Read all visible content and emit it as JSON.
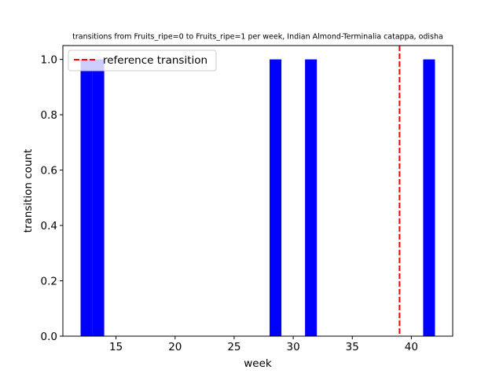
{
  "chart_data": {
    "type": "bar",
    "title": "transitions from Fruits_ripe=0 to Fruits_ripe=1 per week, Indian Almond-Terminalia catappa, odisha",
    "xlabel": "week",
    "ylabel": "transition count",
    "xlim": [
      10.5,
      43.5
    ],
    "ylim": [
      0,
      1.05
    ],
    "xticks": [
      15,
      20,
      25,
      30,
      35,
      40
    ],
    "yticks": [
      0.0,
      0.2,
      0.4,
      0.6,
      0.8,
      1.0
    ],
    "ytick_labels": [
      "0.0",
      "0.2",
      "0.4",
      "0.6",
      "0.8",
      "1.0"
    ],
    "bar_width": 1,
    "bars": [
      {
        "x": 12,
        "value": 1
      },
      {
        "x": 13,
        "value": 1
      },
      {
        "x": 28,
        "value": 1
      },
      {
        "x": 31,
        "value": 1
      },
      {
        "x": 41,
        "value": 1
      }
    ],
    "bar_color": "#0000ff",
    "reference_line": {
      "x": 39,
      "label": "reference transition",
      "color": "#ff0000"
    },
    "legend_placement": "top-left",
    "grid": false
  }
}
